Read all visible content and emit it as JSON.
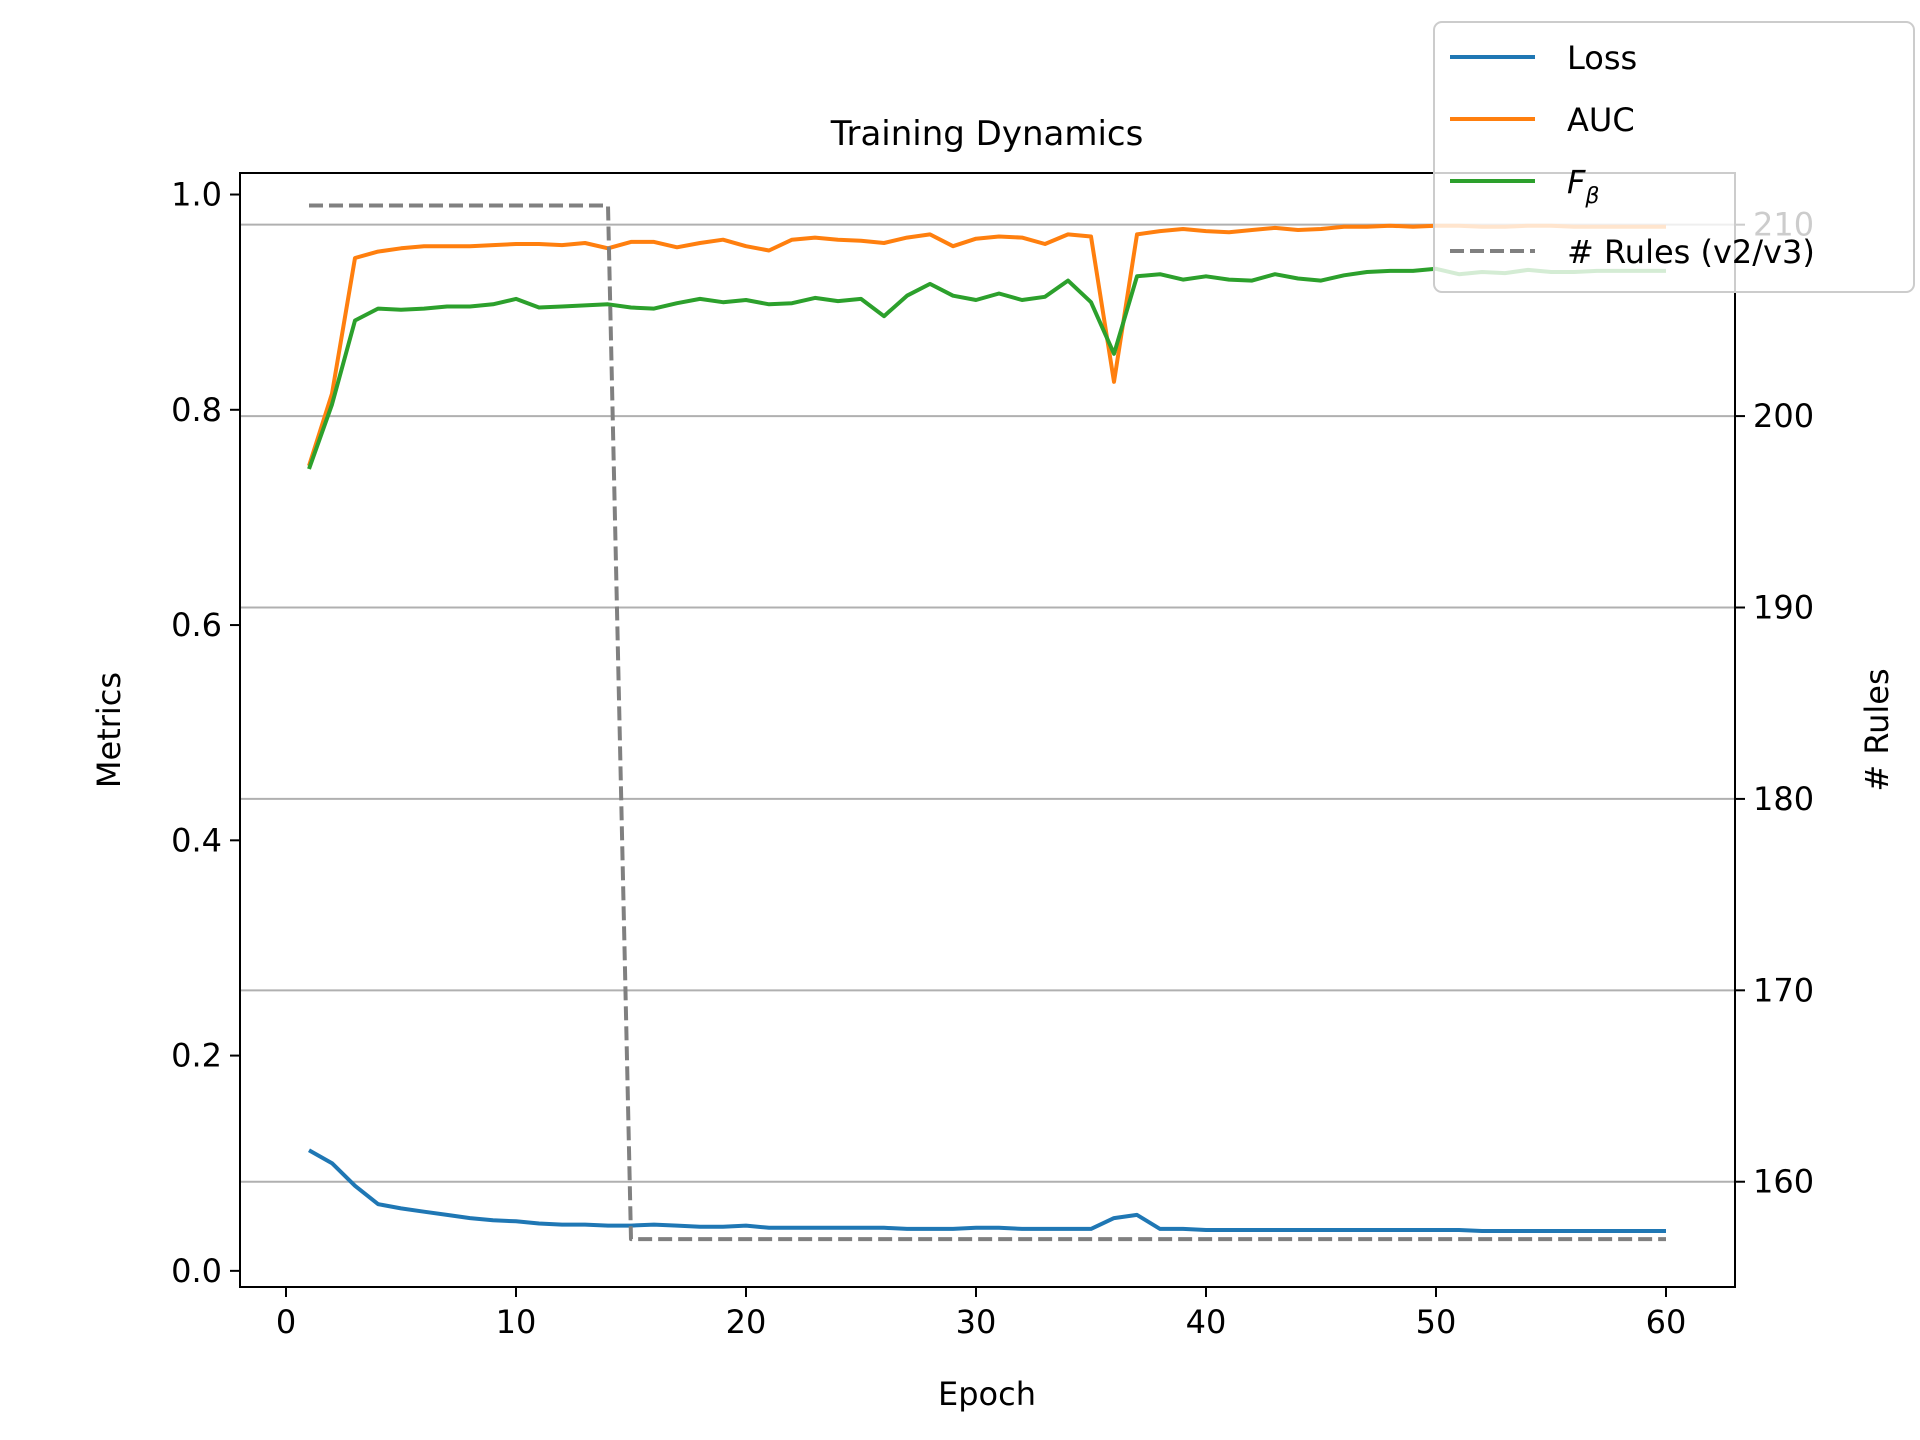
{
  "chart_data": {
    "type": "line",
    "title": "Training Dynamics",
    "xlabel": "Epoch",
    "ylabel_left": "Metrics",
    "ylabel_right": "# Rules",
    "xlim": [
      -2,
      63
    ],
    "ylim_left": [
      -0.015,
      1.02
    ],
    "ylim_right": [
      154.5,
      212.7
    ],
    "x_ticks": [
      "0",
      "10",
      "20",
      "30",
      "40",
      "50",
      "60"
    ],
    "y_ticks_left": [
      "0.0",
      "0.2",
      "0.4",
      "0.6",
      "0.8",
      "1.0"
    ],
    "y_ticks_right": [
      "160",
      "170",
      "180",
      "190",
      "200",
      "210"
    ],
    "grid": "right axis, horizontal",
    "legend_position": "top-right",
    "x": [
      1,
      2,
      3,
      4,
      5,
      6,
      7,
      8,
      9,
      10,
      11,
      12,
      13,
      14,
      15,
      16,
      17,
      18,
      19,
      20,
      21,
      22,
      23,
      24,
      25,
      26,
      27,
      28,
      29,
      30,
      31,
      32,
      33,
      34,
      35,
      36,
      37,
      38,
      39,
      40,
      41,
      42,
      43,
      44,
      45,
      46,
      47,
      48,
      49,
      50,
      51,
      52,
      53,
      54,
      55,
      56,
      57,
      58,
      59,
      60
    ],
    "series": [
      {
        "name": "Loss",
        "color": "#1f77b4",
        "axis": "left",
        "style": "solid",
        "values": [
          0.112,
          0.1,
          0.079,
          0.062,
          0.058,
          0.055,
          0.052,
          0.049,
          0.047,
          0.046,
          0.044,
          0.043,
          0.043,
          0.042,
          0.042,
          0.043,
          0.042,
          0.041,
          0.041,
          0.042,
          0.04,
          0.04,
          0.04,
          0.04,
          0.04,
          0.04,
          0.039,
          0.039,
          0.039,
          0.04,
          0.04,
          0.039,
          0.039,
          0.039,
          0.039,
          0.049,
          0.052,
          0.039,
          0.039,
          0.038,
          0.038,
          0.038,
          0.038,
          0.038,
          0.038,
          0.038,
          0.038,
          0.038,
          0.038,
          0.038,
          0.038,
          0.037,
          0.037,
          0.037,
          0.037,
          0.037,
          0.037,
          0.037,
          0.037,
          0.037
        ]
      },
      {
        "name": "AUC",
        "color": "#ff7f0e",
        "axis": "left",
        "style": "solid",
        "values": [
          0.748,
          0.815,
          0.941,
          0.947,
          0.95,
          0.952,
          0.952,
          0.952,
          0.953,
          0.954,
          0.954,
          0.953,
          0.955,
          0.95,
          0.956,
          0.956,
          0.951,
          0.955,
          0.958,
          0.952,
          0.948,
          0.958,
          0.96,
          0.958,
          0.957,
          0.955,
          0.96,
          0.963,
          0.952,
          0.959,
          0.961,
          0.96,
          0.954,
          0.963,
          0.961,
          0.826,
          0.963,
          0.966,
          0.968,
          0.966,
          0.965,
          0.967,
          0.969,
          0.967,
          0.968,
          0.97,
          0.97,
          0.971,
          0.97,
          0.971,
          0.971,
          0.97,
          0.97,
          0.971,
          0.971,
          0.97,
          0.97,
          0.97,
          0.97,
          0.97
        ]
      },
      {
        "name": "F_β",
        "name_main": "F",
        "name_sub": "β",
        "color": "#2ca02c",
        "axis": "left",
        "style": "solid",
        "values": [
          0.745,
          0.805,
          0.883,
          0.894,
          0.893,
          0.894,
          0.896,
          0.896,
          0.898,
          0.903,
          0.895,
          0.896,
          0.897,
          0.898,
          0.895,
          0.894,
          0.899,
          0.903,
          0.9,
          0.902,
          0.898,
          0.899,
          0.904,
          0.901,
          0.903,
          0.887,
          0.906,
          0.917,
          0.906,
          0.902,
          0.908,
          0.902,
          0.905,
          0.92,
          0.9,
          0.852,
          0.924,
          0.926,
          0.921,
          0.924,
          0.921,
          0.92,
          0.926,
          0.922,
          0.92,
          0.925,
          0.928,
          0.929,
          0.929,
          0.931,
          0.926,
          0.928,
          0.927,
          0.93,
          0.928,
          0.928,
          0.929,
          0.929,
          0.929,
          0.929
        ]
      },
      {
        "name": "# Rules (v2/v3)",
        "color": "#808080",
        "axis": "right",
        "style": "dashed",
        "values": [
          211,
          211,
          211,
          211,
          211,
          211,
          211,
          211,
          211,
          211,
          211,
          211,
          211,
          211,
          157,
          157,
          157,
          157,
          157,
          157,
          157,
          157,
          157,
          157,
          157,
          157,
          157,
          157,
          157,
          157,
          157,
          157,
          157,
          157,
          157,
          157,
          157,
          157,
          157,
          157,
          157,
          157,
          157,
          157,
          157,
          157,
          157,
          157,
          157,
          157,
          157,
          157,
          157,
          157,
          157,
          157,
          157,
          157,
          157,
          157
        ]
      }
    ]
  }
}
